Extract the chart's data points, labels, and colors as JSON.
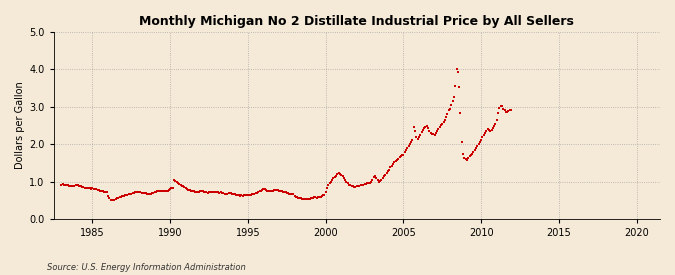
{
  "title": "Monthly Michigan No 2 Distillate Industrial Price by All Sellers",
  "ylabel": "Dollars per Gallon",
  "source": "Source: U.S. Energy Information Administration",
  "background_color": "#f5ead8",
  "line_color": "#cc0000",
  "marker_color": "#cc0000",
  "xlim": [
    1982.5,
    2021.5
  ],
  "ylim": [
    0.0,
    5.0
  ],
  "yticks": [
    0.0,
    1.0,
    2.0,
    3.0,
    4.0,
    5.0
  ],
  "xticks": [
    1985,
    1990,
    1995,
    2000,
    2005,
    2010,
    2015,
    2020
  ],
  "data": [
    [
      1983.0,
      0.92
    ],
    [
      1983.083,
      0.93
    ],
    [
      1983.167,
      0.91
    ],
    [
      1983.25,
      0.9
    ],
    [
      1983.333,
      0.91
    ],
    [
      1983.417,
      0.9
    ],
    [
      1983.5,
      0.89
    ],
    [
      1983.583,
      0.88
    ],
    [
      1983.667,
      0.88
    ],
    [
      1983.75,
      0.89
    ],
    [
      1983.833,
      0.89
    ],
    [
      1983.917,
      0.9
    ],
    [
      1984.0,
      0.9
    ],
    [
      1984.083,
      0.91
    ],
    [
      1984.167,
      0.89
    ],
    [
      1984.25,
      0.87
    ],
    [
      1984.333,
      0.86
    ],
    [
      1984.417,
      0.85
    ],
    [
      1984.5,
      0.84
    ],
    [
      1984.583,
      0.84
    ],
    [
      1984.667,
      0.83
    ],
    [
      1984.75,
      0.82
    ],
    [
      1984.833,
      0.82
    ],
    [
      1984.917,
      0.81
    ],
    [
      1985.0,
      0.82
    ],
    [
      1985.083,
      0.81
    ],
    [
      1985.167,
      0.8
    ],
    [
      1985.25,
      0.79
    ],
    [
      1985.333,
      0.78
    ],
    [
      1985.417,
      0.77
    ],
    [
      1985.5,
      0.76
    ],
    [
      1985.583,
      0.75
    ],
    [
      1985.667,
      0.74
    ],
    [
      1985.75,
      0.73
    ],
    [
      1985.833,
      0.72
    ],
    [
      1985.917,
      0.71
    ],
    [
      1986.0,
      0.62
    ],
    [
      1986.083,
      0.55
    ],
    [
      1986.167,
      0.52
    ],
    [
      1986.25,
      0.5
    ],
    [
      1986.333,
      0.51
    ],
    [
      1986.417,
      0.52
    ],
    [
      1986.5,
      0.54
    ],
    [
      1986.583,
      0.56
    ],
    [
      1986.667,
      0.57
    ],
    [
      1986.75,
      0.58
    ],
    [
      1986.833,
      0.59
    ],
    [
      1986.917,
      0.61
    ],
    [
      1987.0,
      0.62
    ],
    [
      1987.083,
      0.63
    ],
    [
      1987.167,
      0.64
    ],
    [
      1987.25,
      0.65
    ],
    [
      1987.333,
      0.66
    ],
    [
      1987.417,
      0.67
    ],
    [
      1987.5,
      0.68
    ],
    [
      1987.583,
      0.69
    ],
    [
      1987.667,
      0.7
    ],
    [
      1987.75,
      0.71
    ],
    [
      1987.833,
      0.71
    ],
    [
      1987.917,
      0.72
    ],
    [
      1988.0,
      0.72
    ],
    [
      1988.083,
      0.71
    ],
    [
      1988.167,
      0.7
    ],
    [
      1988.25,
      0.69
    ],
    [
      1988.333,
      0.7
    ],
    [
      1988.417,
      0.69
    ],
    [
      1988.5,
      0.68
    ],
    [
      1988.583,
      0.68
    ],
    [
      1988.667,
      0.68
    ],
    [
      1988.75,
      0.68
    ],
    [
      1988.833,
      0.69
    ],
    [
      1988.917,
      0.7
    ],
    [
      1989.0,
      0.72
    ],
    [
      1989.083,
      0.73
    ],
    [
      1989.167,
      0.74
    ],
    [
      1989.25,
      0.75
    ],
    [
      1989.333,
      0.76
    ],
    [
      1989.417,
      0.75
    ],
    [
      1989.5,
      0.74
    ],
    [
      1989.583,
      0.74
    ],
    [
      1989.667,
      0.74
    ],
    [
      1989.75,
      0.75
    ],
    [
      1989.833,
      0.76
    ],
    [
      1989.917,
      0.78
    ],
    [
      1990.0,
      0.8
    ],
    [
      1990.083,
      0.82
    ],
    [
      1990.167,
      0.84
    ],
    [
      1990.25,
      1.05
    ],
    [
      1990.333,
      1.02
    ],
    [
      1990.417,
      0.99
    ],
    [
      1990.5,
      0.95
    ],
    [
      1990.583,
      0.93
    ],
    [
      1990.667,
      0.91
    ],
    [
      1990.75,
      0.89
    ],
    [
      1990.833,
      0.87
    ],
    [
      1990.917,
      0.86
    ],
    [
      1991.0,
      0.82
    ],
    [
      1991.083,
      0.8
    ],
    [
      1991.167,
      0.78
    ],
    [
      1991.25,
      0.77
    ],
    [
      1991.333,
      0.76
    ],
    [
      1991.417,
      0.75
    ],
    [
      1991.5,
      0.74
    ],
    [
      1991.583,
      0.73
    ],
    [
      1991.667,
      0.73
    ],
    [
      1991.75,
      0.73
    ],
    [
      1991.833,
      0.73
    ],
    [
      1991.917,
      0.74
    ],
    [
      1992.0,
      0.75
    ],
    [
      1992.083,
      0.74
    ],
    [
      1992.167,
      0.73
    ],
    [
      1992.25,
      0.72
    ],
    [
      1992.333,
      0.71
    ],
    [
      1992.417,
      0.7
    ],
    [
      1992.5,
      0.71
    ],
    [
      1992.583,
      0.72
    ],
    [
      1992.667,
      0.71
    ],
    [
      1992.75,
      0.72
    ],
    [
      1992.833,
      0.72
    ],
    [
      1992.917,
      0.73
    ],
    [
      1993.0,
      0.72
    ],
    [
      1993.083,
      0.71
    ],
    [
      1993.167,
      0.7
    ],
    [
      1993.25,
      0.71
    ],
    [
      1993.333,
      0.7
    ],
    [
      1993.417,
      0.69
    ],
    [
      1993.5,
      0.68
    ],
    [
      1993.583,
      0.67
    ],
    [
      1993.667,
      0.68
    ],
    [
      1993.75,
      0.69
    ],
    [
      1993.833,
      0.69
    ],
    [
      1993.917,
      0.69
    ],
    [
      1994.0,
      0.68
    ],
    [
      1994.083,
      0.67
    ],
    [
      1994.167,
      0.66
    ],
    [
      1994.25,
      0.65
    ],
    [
      1994.333,
      0.64
    ],
    [
      1994.417,
      0.63
    ],
    [
      1994.5,
      0.62
    ],
    [
      1994.583,
      0.63
    ],
    [
      1994.667,
      0.62
    ],
    [
      1994.75,
      0.63
    ],
    [
      1994.833,
      0.63
    ],
    [
      1994.917,
      0.63
    ],
    [
      1995.0,
      0.64
    ],
    [
      1995.083,
      0.65
    ],
    [
      1995.167,
      0.65
    ],
    [
      1995.25,
      0.66
    ],
    [
      1995.333,
      0.67
    ],
    [
      1995.417,
      0.68
    ],
    [
      1995.5,
      0.69
    ],
    [
      1995.583,
      0.7
    ],
    [
      1995.667,
      0.72
    ],
    [
      1995.75,
      0.74
    ],
    [
      1995.833,
      0.76
    ],
    [
      1995.917,
      0.78
    ],
    [
      1996.0,
      0.8
    ],
    [
      1996.083,
      0.8
    ],
    [
      1996.167,
      0.78
    ],
    [
      1996.25,
      0.76
    ],
    [
      1996.333,
      0.75
    ],
    [
      1996.417,
      0.74
    ],
    [
      1996.5,
      0.75
    ],
    [
      1996.583,
      0.76
    ],
    [
      1996.667,
      0.77
    ],
    [
      1996.75,
      0.77
    ],
    [
      1996.833,
      0.77
    ],
    [
      1996.917,
      0.78
    ],
    [
      1997.0,
      0.76
    ],
    [
      1997.083,
      0.75
    ],
    [
      1997.167,
      0.74
    ],
    [
      1997.25,
      0.73
    ],
    [
      1997.333,
      0.72
    ],
    [
      1997.417,
      0.71
    ],
    [
      1997.5,
      0.7
    ],
    [
      1997.583,
      0.69
    ],
    [
      1997.667,
      0.68
    ],
    [
      1997.75,
      0.67
    ],
    [
      1997.833,
      0.67
    ],
    [
      1997.917,
      0.67
    ],
    [
      1998.0,
      0.62
    ],
    [
      1998.083,
      0.6
    ],
    [
      1998.167,
      0.58
    ],
    [
      1998.25,
      0.57
    ],
    [
      1998.333,
      0.56
    ],
    [
      1998.417,
      0.55
    ],
    [
      1998.5,
      0.54
    ],
    [
      1998.583,
      0.53
    ],
    [
      1998.667,
      0.53
    ],
    [
      1998.75,
      0.53
    ],
    [
      1998.833,
      0.53
    ],
    [
      1998.917,
      0.53
    ],
    [
      1999.0,
      0.54
    ],
    [
      1999.083,
      0.55
    ],
    [
      1999.167,
      0.57
    ],
    [
      1999.25,
      0.58
    ],
    [
      1999.333,
      0.58
    ],
    [
      1999.417,
      0.57
    ],
    [
      1999.5,
      0.58
    ],
    [
      1999.583,
      0.59
    ],
    [
      1999.667,
      0.6
    ],
    [
      1999.75,
      0.62
    ],
    [
      1999.833,
      0.63
    ],
    [
      1999.917,
      0.65
    ],
    [
      2000.0,
      0.72
    ],
    [
      2000.083,
      0.82
    ],
    [
      2000.167,
      0.9
    ],
    [
      2000.25,
      0.95
    ],
    [
      2000.333,
      1.0
    ],
    [
      2000.417,
      1.05
    ],
    [
      2000.5,
      1.1
    ],
    [
      2000.583,
      1.12
    ],
    [
      2000.667,
      1.15
    ],
    [
      2000.75,
      1.2
    ],
    [
      2000.833,
      1.22
    ],
    [
      2000.917,
      1.2
    ],
    [
      2001.0,
      1.18
    ],
    [
      2001.083,
      1.15
    ],
    [
      2001.167,
      1.1
    ],
    [
      2001.25,
      1.05
    ],
    [
      2001.333,
      1.0
    ],
    [
      2001.417,
      0.95
    ],
    [
      2001.5,
      0.92
    ],
    [
      2001.583,
      0.9
    ],
    [
      2001.667,
      0.88
    ],
    [
      2001.75,
      0.87
    ],
    [
      2001.833,
      0.86
    ],
    [
      2001.917,
      0.86
    ],
    [
      2002.0,
      0.87
    ],
    [
      2002.083,
      0.88
    ],
    [
      2002.167,
      0.89
    ],
    [
      2002.25,
      0.9
    ],
    [
      2002.333,
      0.91
    ],
    [
      2002.417,
      0.92
    ],
    [
      2002.5,
      0.93
    ],
    [
      2002.583,
      0.94
    ],
    [
      2002.667,
      0.95
    ],
    [
      2002.75,
      0.96
    ],
    [
      2002.833,
      0.97
    ],
    [
      2002.917,
      0.98
    ],
    [
      2003.0,
      1.05
    ],
    [
      2003.083,
      1.12
    ],
    [
      2003.167,
      1.14
    ],
    [
      2003.25,
      1.1
    ],
    [
      2003.333,
      1.05
    ],
    [
      2003.417,
      1.0
    ],
    [
      2003.5,
      1.02
    ],
    [
      2003.583,
      1.05
    ],
    [
      2003.667,
      1.1
    ],
    [
      2003.75,
      1.15
    ],
    [
      2003.833,
      1.18
    ],
    [
      2003.917,
      1.22
    ],
    [
      2004.0,
      1.28
    ],
    [
      2004.083,
      1.32
    ],
    [
      2004.167,
      1.38
    ],
    [
      2004.25,
      1.42
    ],
    [
      2004.333,
      1.46
    ],
    [
      2004.417,
      1.52
    ],
    [
      2004.5,
      1.55
    ],
    [
      2004.583,
      1.58
    ],
    [
      2004.667,
      1.6
    ],
    [
      2004.75,
      1.65
    ],
    [
      2004.833,
      1.68
    ],
    [
      2004.917,
      1.7
    ],
    [
      2005.0,
      1.72
    ],
    [
      2005.083,
      1.78
    ],
    [
      2005.167,
      1.85
    ],
    [
      2005.25,
      1.9
    ],
    [
      2005.333,
      1.95
    ],
    [
      2005.417,
      2.0
    ],
    [
      2005.5,
      2.05
    ],
    [
      2005.583,
      2.1
    ],
    [
      2005.667,
      2.45
    ],
    [
      2005.75,
      2.35
    ],
    [
      2005.833,
      2.2
    ],
    [
      2005.917,
      2.15
    ],
    [
      2006.0,
      2.2
    ],
    [
      2006.083,
      2.25
    ],
    [
      2006.167,
      2.32
    ],
    [
      2006.25,
      2.38
    ],
    [
      2006.333,
      2.42
    ],
    [
      2006.417,
      2.45
    ],
    [
      2006.5,
      2.48
    ],
    [
      2006.583,
      2.42
    ],
    [
      2006.667,
      2.36
    ],
    [
      2006.75,
      2.3
    ],
    [
      2006.833,
      2.28
    ],
    [
      2006.917,
      2.26
    ],
    [
      2007.0,
      2.25
    ],
    [
      2007.083,
      2.3
    ],
    [
      2007.167,
      2.35
    ],
    [
      2007.25,
      2.4
    ],
    [
      2007.333,
      2.45
    ],
    [
      2007.417,
      2.5
    ],
    [
      2007.5,
      2.55
    ],
    [
      2007.583,
      2.6
    ],
    [
      2007.667,
      2.65
    ],
    [
      2007.75,
      2.72
    ],
    [
      2007.833,
      2.8
    ],
    [
      2007.917,
      2.9
    ],
    [
      2008.0,
      2.95
    ],
    [
      2008.083,
      3.05
    ],
    [
      2008.167,
      3.15
    ],
    [
      2008.25,
      3.25
    ],
    [
      2008.333,
      3.55
    ],
    [
      2008.417,
      4.02
    ],
    [
      2008.5,
      3.92
    ],
    [
      2008.583,
      3.52
    ],
    [
      2008.667,
      2.82
    ],
    [
      2008.75,
      2.05
    ],
    [
      2008.833,
      1.75
    ],
    [
      2008.917,
      1.62
    ],
    [
      2009.0,
      1.6
    ],
    [
      2009.083,
      1.58
    ],
    [
      2009.167,
      1.62
    ],
    [
      2009.25,
      1.68
    ],
    [
      2009.333,
      1.72
    ],
    [
      2009.417,
      1.75
    ],
    [
      2009.5,
      1.8
    ],
    [
      2009.583,
      1.85
    ],
    [
      2009.667,
      1.9
    ],
    [
      2009.75,
      1.95
    ],
    [
      2009.833,
      2.0
    ],
    [
      2009.917,
      2.05
    ],
    [
      2010.0,
      2.12
    ],
    [
      2010.083,
      2.2
    ],
    [
      2010.167,
      2.25
    ],
    [
      2010.25,
      2.3
    ],
    [
      2010.333,
      2.35
    ],
    [
      2010.417,
      2.4
    ],
    [
      2010.5,
      2.38
    ],
    [
      2010.583,
      2.35
    ],
    [
      2010.667,
      2.38
    ],
    [
      2010.75,
      2.42
    ],
    [
      2010.833,
      2.48
    ],
    [
      2010.917,
      2.55
    ],
    [
      2011.0,
      2.65
    ],
    [
      2011.083,
      2.82
    ],
    [
      2011.167,
      2.98
    ],
    [
      2011.25,
      3.02
    ],
    [
      2011.333,
      3.02
    ],
    [
      2011.417,
      2.95
    ],
    [
      2011.5,
      2.9
    ],
    [
      2011.583,
      2.87
    ],
    [
      2011.667,
      2.85
    ],
    [
      2011.75,
      2.88
    ],
    [
      2011.833,
      2.9
    ],
    [
      2011.917,
      2.92
    ]
  ]
}
